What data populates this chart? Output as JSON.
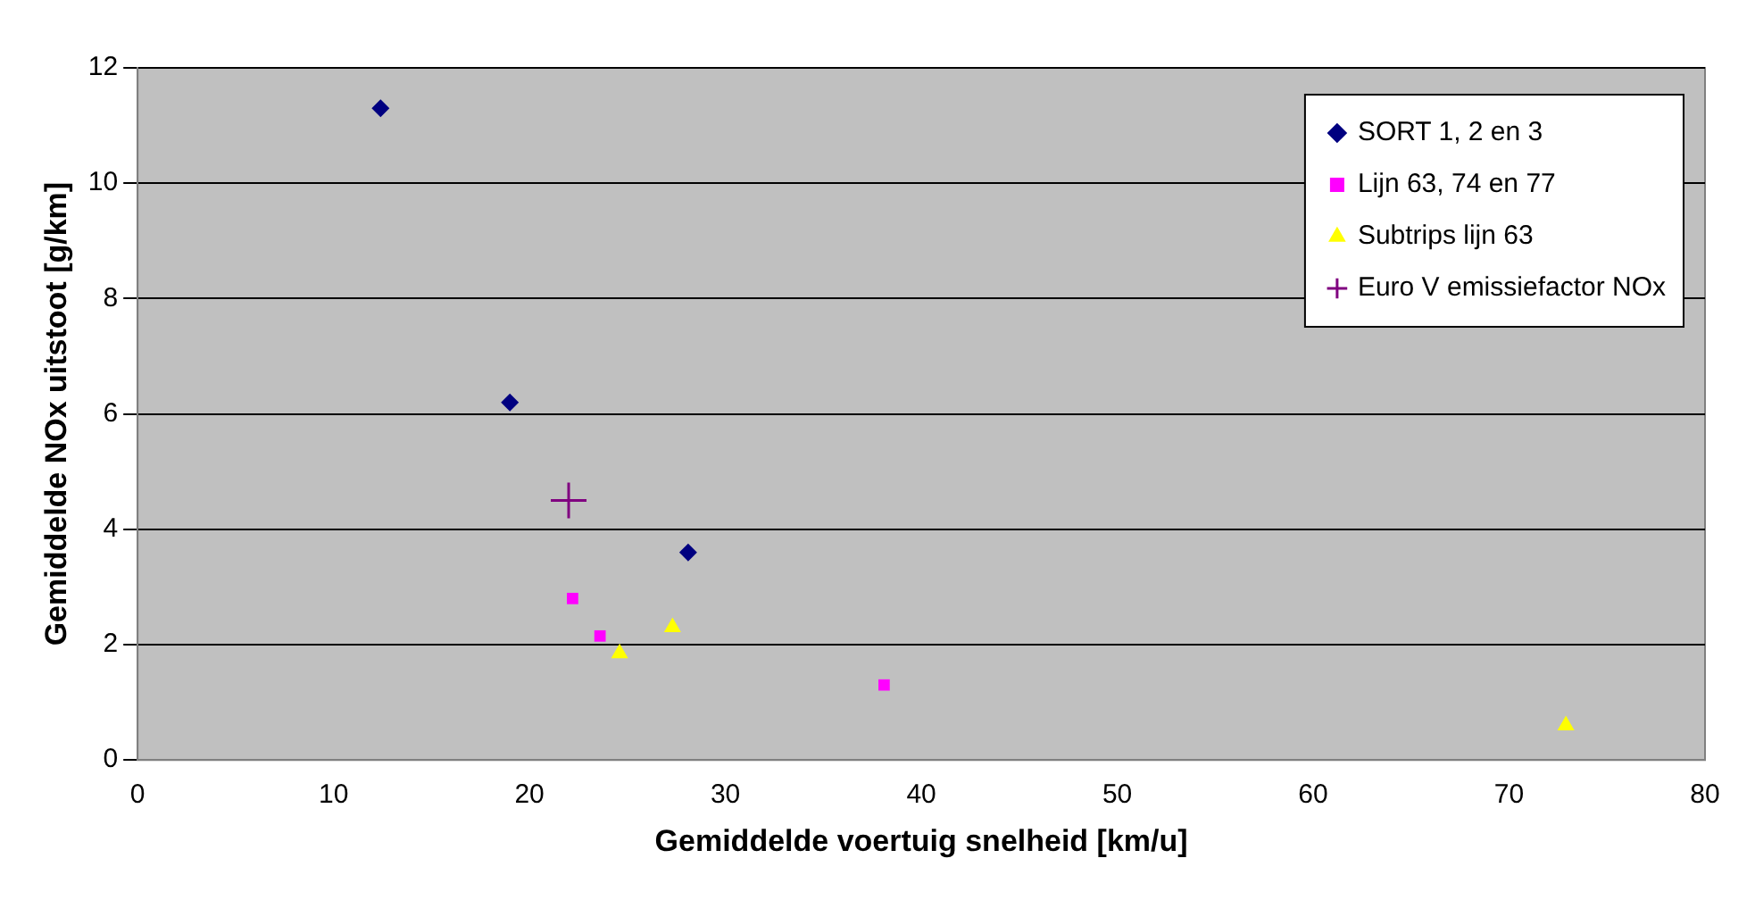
{
  "chart_data": {
    "type": "scatter",
    "xlabel": "Gemiddelde voertuig snelheid [km/u]",
    "ylabel": "Gemiddelde NOx uitstoot [g/km]",
    "xlim": [
      0,
      80
    ],
    "xticks": [
      0,
      10,
      20,
      30,
      40,
      50,
      60,
      70,
      80
    ],
    "ylim": [
      0,
      12
    ],
    "yticks": [
      0,
      2,
      4,
      6,
      8,
      10,
      12
    ],
    "grid": "y",
    "legend": "top right",
    "series": [
      {
        "name": "SORT 1, 2 en 3",
        "color": "#000080",
        "marker": "diamond",
        "x": [
          12.4,
          19.0,
          28.1
        ],
        "values": [
          11.3,
          6.2,
          3.6
        ]
      },
      {
        "name": "Lijn 63, 74 en 77",
        "color": "#ff00ff",
        "marker": "square",
        "x": [
          22.2,
          23.6,
          38.1
        ],
        "values": [
          2.8,
          2.15,
          1.3
        ]
      },
      {
        "name": "Subtrips lijn 63",
        "color": "#ffff00",
        "marker": "triangle",
        "x": [
          24.6,
          27.3,
          72.9
        ],
        "values": [
          1.85,
          2.3,
          0.6
        ]
      },
      {
        "name": "Euro V emissiefactor NOx",
        "color": "#800080",
        "marker": "cross",
        "x": [
          22.0
        ],
        "values": [
          4.5
        ]
      }
    ]
  }
}
